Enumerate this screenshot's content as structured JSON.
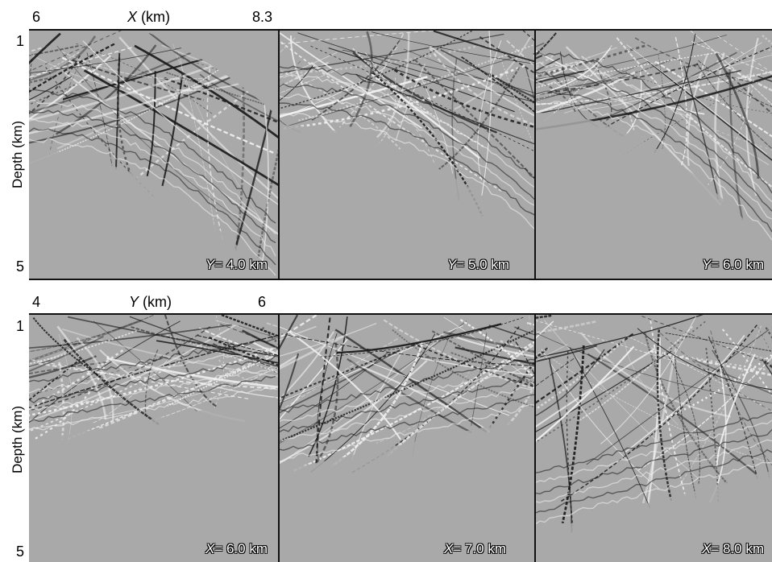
{
  "top_row": {
    "axis": {
      "x_min": "6",
      "x_label_var": "X",
      "x_label_unit": "(km)",
      "x_max": "8.3",
      "y_top": "1",
      "y_bottom": "5",
      "y_label": "Depth (km)"
    },
    "panels": [
      {
        "var": "Y",
        "value_text": "= 4.0 km"
      },
      {
        "var": "Y",
        "value_text": "= 5.0 km"
      },
      {
        "var": "Y",
        "value_text": "= 6.0 km"
      }
    ]
  },
  "bottom_row": {
    "axis": {
      "x_min": "4",
      "x_label_var": "Y",
      "x_label_unit": "(km)",
      "x_max": "6",
      "y_top": "1",
      "y_bottom": "5",
      "y_label": "Depth (km)"
    },
    "panels": [
      {
        "var": "X",
        "value_text": "= 6.0 km"
      },
      {
        "var": "X",
        "value_text": "= 7.0 km"
      },
      {
        "var": "X",
        "value_text": "= 8.0 km"
      }
    ]
  },
  "colors": {
    "background_gray": "#a9a9a9",
    "stripe_dark": "#1a1a1a",
    "stripe_light": "#f2f2f2"
  }
}
